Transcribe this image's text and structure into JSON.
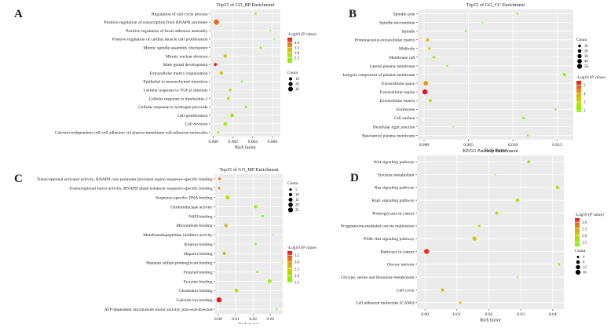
{
  "figure": {
    "legend_color_title": "-Log10 (P value)",
    "legend_size_title": "Count"
  },
  "chart_data": [
    {
      "type": "scatter",
      "panel": "A",
      "title": "Top15 of GO_BP Enrichment",
      "xlabel": "Rich factor",
      "xlim": [
        -0.0003,
        0.0068
      ],
      "xticks": [
        0.0,
        0.002,
        0.004,
        0.006
      ],
      "xtick_labels": [
        "0.000",
        "0.002",
        "0.004",
        "0.006"
      ],
      "color_range": [
        2.0,
        4.5
      ],
      "colorbar_ticks": [
        4.0,
        3.5,
        3.0,
        2.5
      ],
      "colorbar_labels": [
        "4.0",
        "3.5",
        "3.0",
        "2.5"
      ],
      "size_ticks": [
        10,
        20,
        30
      ],
      "size_range": [
        3,
        34
      ],
      "terms": [
        "Regulation of cell cycle process",
        "Positive regulation of transcription from RNAPII promoter",
        "Positive regulation of focal adhesion assembly",
        "Positive regulation of cardiac muscle cell proliferation",
        "Mitotic spindle assembly checkpoint",
        "Mitotic nuclear division",
        "Male gonad development",
        "Extracellular matrix organization",
        "Epithelial to mesenchymal transition",
        "Cellular response to TGF-β stimulus",
        "Cellular response to interleukin-1",
        "Cellular response to hydrogen peroxide",
        "Cell proliferation",
        "Cell division",
        "Calcium-independent cell-cell adhesion via plasma membrane cell-adhesion molecules"
      ],
      "x": [
        0.0043,
        0.0003,
        0.0058,
        0.0062,
        0.0048,
        0.0012,
        0.0002,
        0.0008,
        0.0029,
        0.0017,
        0.0015,
        0.0033,
        0.0019,
        0.0012,
        0.0005
      ],
      "count": [
        4,
        34,
        3,
        3,
        4,
        14,
        9,
        12,
        4,
        7,
        7,
        5,
        15,
        16,
        4
      ],
      "logp": [
        2.1,
        4.0,
        2.1,
        2.0,
        2.3,
        3.0,
        4.5,
        3.2,
        2.2,
        2.6,
        2.7,
        2.1,
        2.5,
        2.6,
        2.3
      ]
    },
    {
      "type": "scatter",
      "panel": "B",
      "title": "Top15 of GO_CC Enrichment",
      "xlabel": "Rich factor",
      "xlim": [
        -0.0007,
        0.0168
      ],
      "xticks": [
        0.0,
        0.005,
        0.01,
        0.015
      ],
      "xtick_labels": [
        "0.000",
        "0.005",
        "0.010",
        "0.015"
      ],
      "color_range": [
        1.8,
        5.5
      ],
      "colorbar_ticks": [
        5,
        4,
        3,
        2
      ],
      "colorbar_labels": [
        "5",
        "4",
        "3",
        "2"
      ],
      "size_ticks": [
        10,
        20,
        30,
        40,
        50
      ],
      "size_range": [
        3,
        52
      ],
      "terms": [
        "Spindle pole",
        "Spindle microtubule",
        "Spindle",
        "Proteinaceous extracellular matrix",
        "Midbody",
        "Membrane raft",
        "Lateral plasma membrane",
        "Integral component of plasma membrane",
        "Extracellular space",
        "Extracellular region",
        "Extracellular matrix",
        "Endosome",
        "Cell surface",
        "Bicellular tight junction",
        "Basolateral plasma membrane"
      ],
      "x": [
        0.0105,
        0.0066,
        0.0047,
        0.0004,
        0.0006,
        0.0011,
        0.0026,
        0.0158,
        0.0002,
        0.0001,
        0.0007,
        0.0148,
        0.0112,
        0.0033,
        0.0117
      ],
      "count": [
        4,
        3,
        4,
        11,
        8,
        8,
        4,
        14,
        40,
        52,
        12,
        4,
        8,
        3,
        5
      ],
      "logp": [
        2.0,
        2.2,
        2.0,
        3.6,
        3.3,
        2.3,
        2.1,
        1.9,
        4.2,
        5.5,
        2.6,
        2.0,
        1.9,
        2.3,
        1.9
      ]
    },
    {
      "type": "scatter",
      "panel": "C",
      "title": "Top15 of GO_MF Enrichment",
      "xlabel": "Rich factor",
      "xlim": [
        -0.0017,
        0.037
      ],
      "xticks": [
        0.0,
        0.01,
        0.02,
        0.03
      ],
      "xtick_labels": [
        "0.00",
        "0.01",
        "0.02",
        "0.03"
      ],
      "color_range": [
        1.5,
        3.8
      ],
      "colorbar_ticks": [
        3.5,
        3.0,
        2.5,
        2.0,
        1.5
      ],
      "colorbar_labels": [
        "3.5",
        "3.0",
        "2.5",
        "2.0",
        "1.5"
      ],
      "size_ticks": [
        5,
        10,
        15,
        20,
        25
      ],
      "size_range": [
        3,
        27
      ],
      "terms": [
        "Transcriptional activator activity, RNAPII core promoter proximal region sequence-specific binding",
        "Transcriptional factor activity, RNAPII distal enhancer sequence-specific binding",
        "Sequence-specific DNA binding",
        "Oxidoreductase activity",
        "NAD binding",
        "Microtubule binding",
        "Metalloendopeptidase inhibitor activity",
        "Kinesin binding",
        "Heparin binding",
        "Heparan sulfate proteoglycan binding",
        "Frizzled binding",
        "Enzyme binding",
        "Chromatin binding",
        "Calcium ion binding",
        "ATP-dependent microtubule motor activity, plus-end-directed"
      ],
      "x": [
        0.0008,
        0.0005,
        0.0055,
        0.0215,
        0.0255,
        0.0045,
        0.0315,
        0.0215,
        0.0035,
        0.0368,
        0.0225,
        0.0295,
        0.0105,
        0.0005,
        0.0335
      ],
      "count": [
        6,
        5,
        15,
        8,
        5,
        9,
        3,
        4,
        8,
        3,
        4,
        12,
        13,
        27,
        3
      ],
      "logp": [
        3.2,
        3.1,
        2.2,
        1.6,
        1.6,
        2.8,
        1.5,
        1.6,
        2.7,
        1.5,
        1.6,
        1.6,
        2.2,
        3.8,
        1.5
      ]
    },
    {
      "type": "scatter",
      "panel": "D",
      "title": "KEGG Pathway Enrichment",
      "xlabel": "Rich factor",
      "xlim": [
        -0.0025,
        0.0435
      ],
      "xticks": [
        0.0,
        0.01,
        0.02,
        0.03,
        0.04
      ],
      "xtick_labels": [
        "0.00",
        "0.01",
        "0.02",
        "0.03",
        "0.04"
      ],
      "color_range": [
        1.2,
        3.3
      ],
      "colorbar_ticks": [
        3.0,
        2.5,
        2.0,
        1.5
      ],
      "colorbar_labels": [
        "3.0",
        "2.5",
        "2.0",
        "1.5"
      ],
      "size_ticks": [
        4,
        8,
        12,
        16
      ],
      "size_range": [
        3,
        17
      ],
      "terms": [
        "Wnt signaling pathway",
        "Tyrosine metabolism",
        "Ras signaling pathway",
        "Rap1 signaling pathway",
        "Proteoglycans in cancer",
        "Progesterone-mediated oocyte maturation",
        "PI3K-Akt signaling pathway",
        "Pathways in cancer",
        "Oocyte meiosis",
        "Glycine, serine and threonine metabolism",
        "Cell cycle",
        "Cell adhesion molecules (CAMs)"
      ],
      "x": [
        0.0325,
        0.022,
        0.0415,
        0.029,
        0.0225,
        0.017,
        0.0155,
        0.0005,
        0.042,
        0.029,
        0.0055,
        0.011
      ],
      "count": [
        6,
        3,
        7,
        7,
        6,
        4,
        11,
        16,
        4,
        3,
        6,
        4
      ],
      "logp": [
        1.6,
        1.4,
        1.5,
        1.6,
        1.8,
        1.7,
        2.1,
        3.2,
        1.5,
        1.6,
        2.3,
        2.2
      ]
    }
  ]
}
